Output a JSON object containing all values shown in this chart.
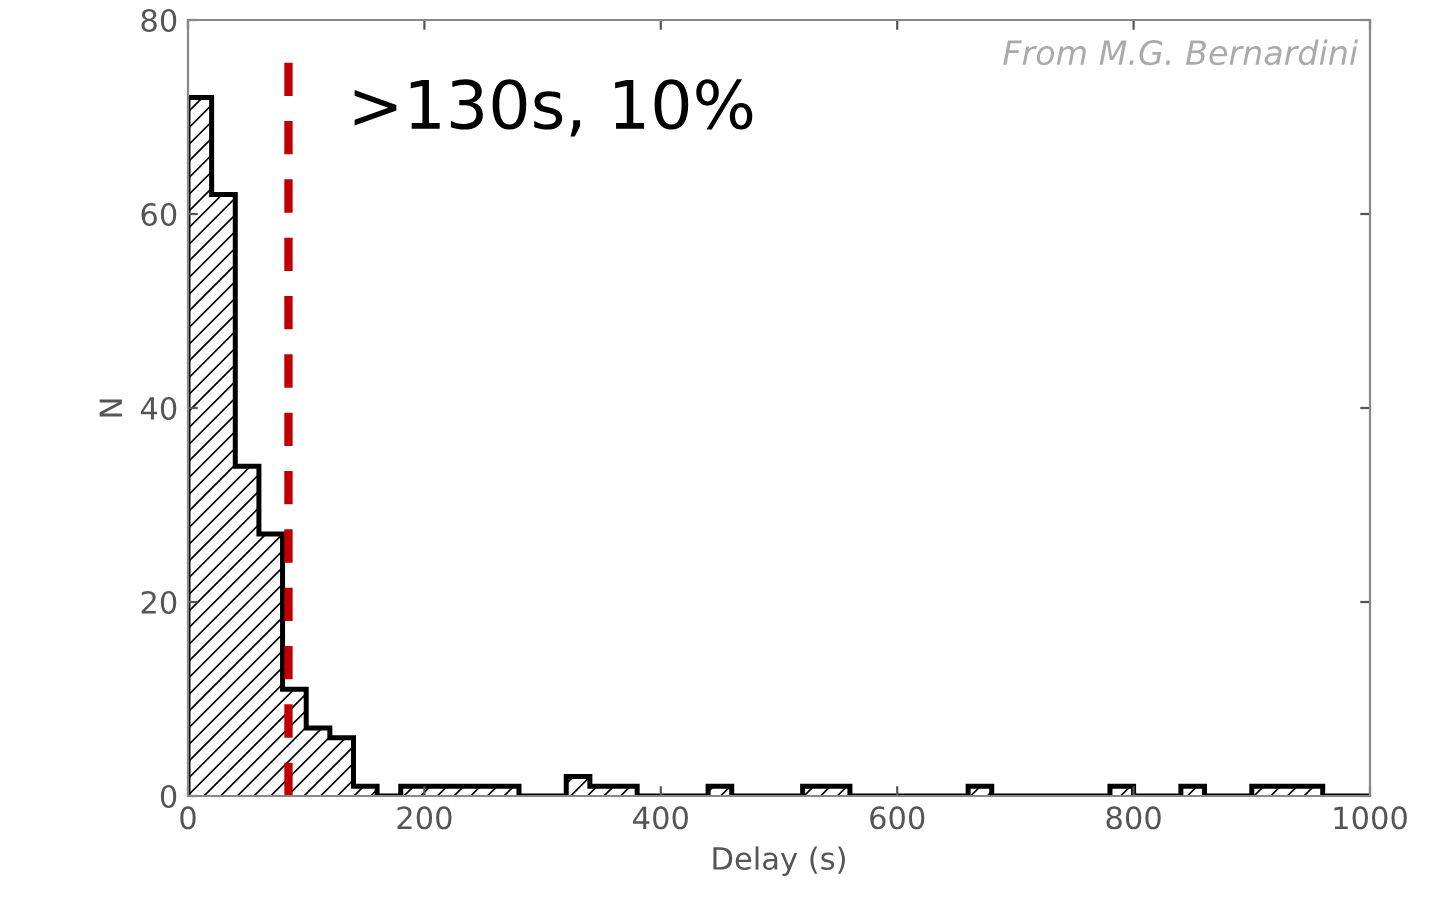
{
  "chart_data": {
    "type": "histogram",
    "xlabel": "Delay (s)",
    "ylabel": "N",
    "bins": [
      0,
      20,
      40,
      60,
      80,
      100,
      120,
      140,
      160,
      180,
      200,
      220,
      240,
      260,
      280,
      300,
      320,
      340,
      360,
      380,
      400,
      420,
      440,
      460,
      480,
      500,
      520,
      540,
      560,
      580,
      600,
      620,
      640,
      660,
      680,
      700,
      720,
      740,
      760,
      780,
      800,
      820,
      840,
      860,
      880,
      900,
      920,
      940,
      960,
      980,
      1000
    ],
    "values": [
      72,
      62,
      34,
      27,
      11,
      7,
      6,
      1,
      0,
      1,
      1,
      1,
      1,
      1,
      0,
      0,
      2,
      1,
      1,
      0,
      0,
      0,
      1,
      0,
      0,
      0,
      1,
      1,
      0,
      0,
      0,
      0,
      0,
      1,
      0,
      0,
      0,
      0,
      0,
      1,
      0,
      0,
      1,
      0,
      0,
      1,
      1,
      1,
      0,
      0
    ],
    "color": "#000000",
    "xlim": [
      0,
      1000
    ],
    "xticks": [
      0,
      200,
      400,
      600,
      800,
      1000
    ],
    "ylim": [
      0,
      80
    ],
    "yticks": [
      0,
      20,
      40,
      60,
      80
    ],
    "grid": false,
    "ref_lines": [
      {
        "axis": "x",
        "value": 85,
        "color": "#c00000",
        "line_style": "dashed"
      }
    ],
    "annotations": [
      ">130s, 10%",
      "From M.G. Bernardini"
    ]
  }
}
